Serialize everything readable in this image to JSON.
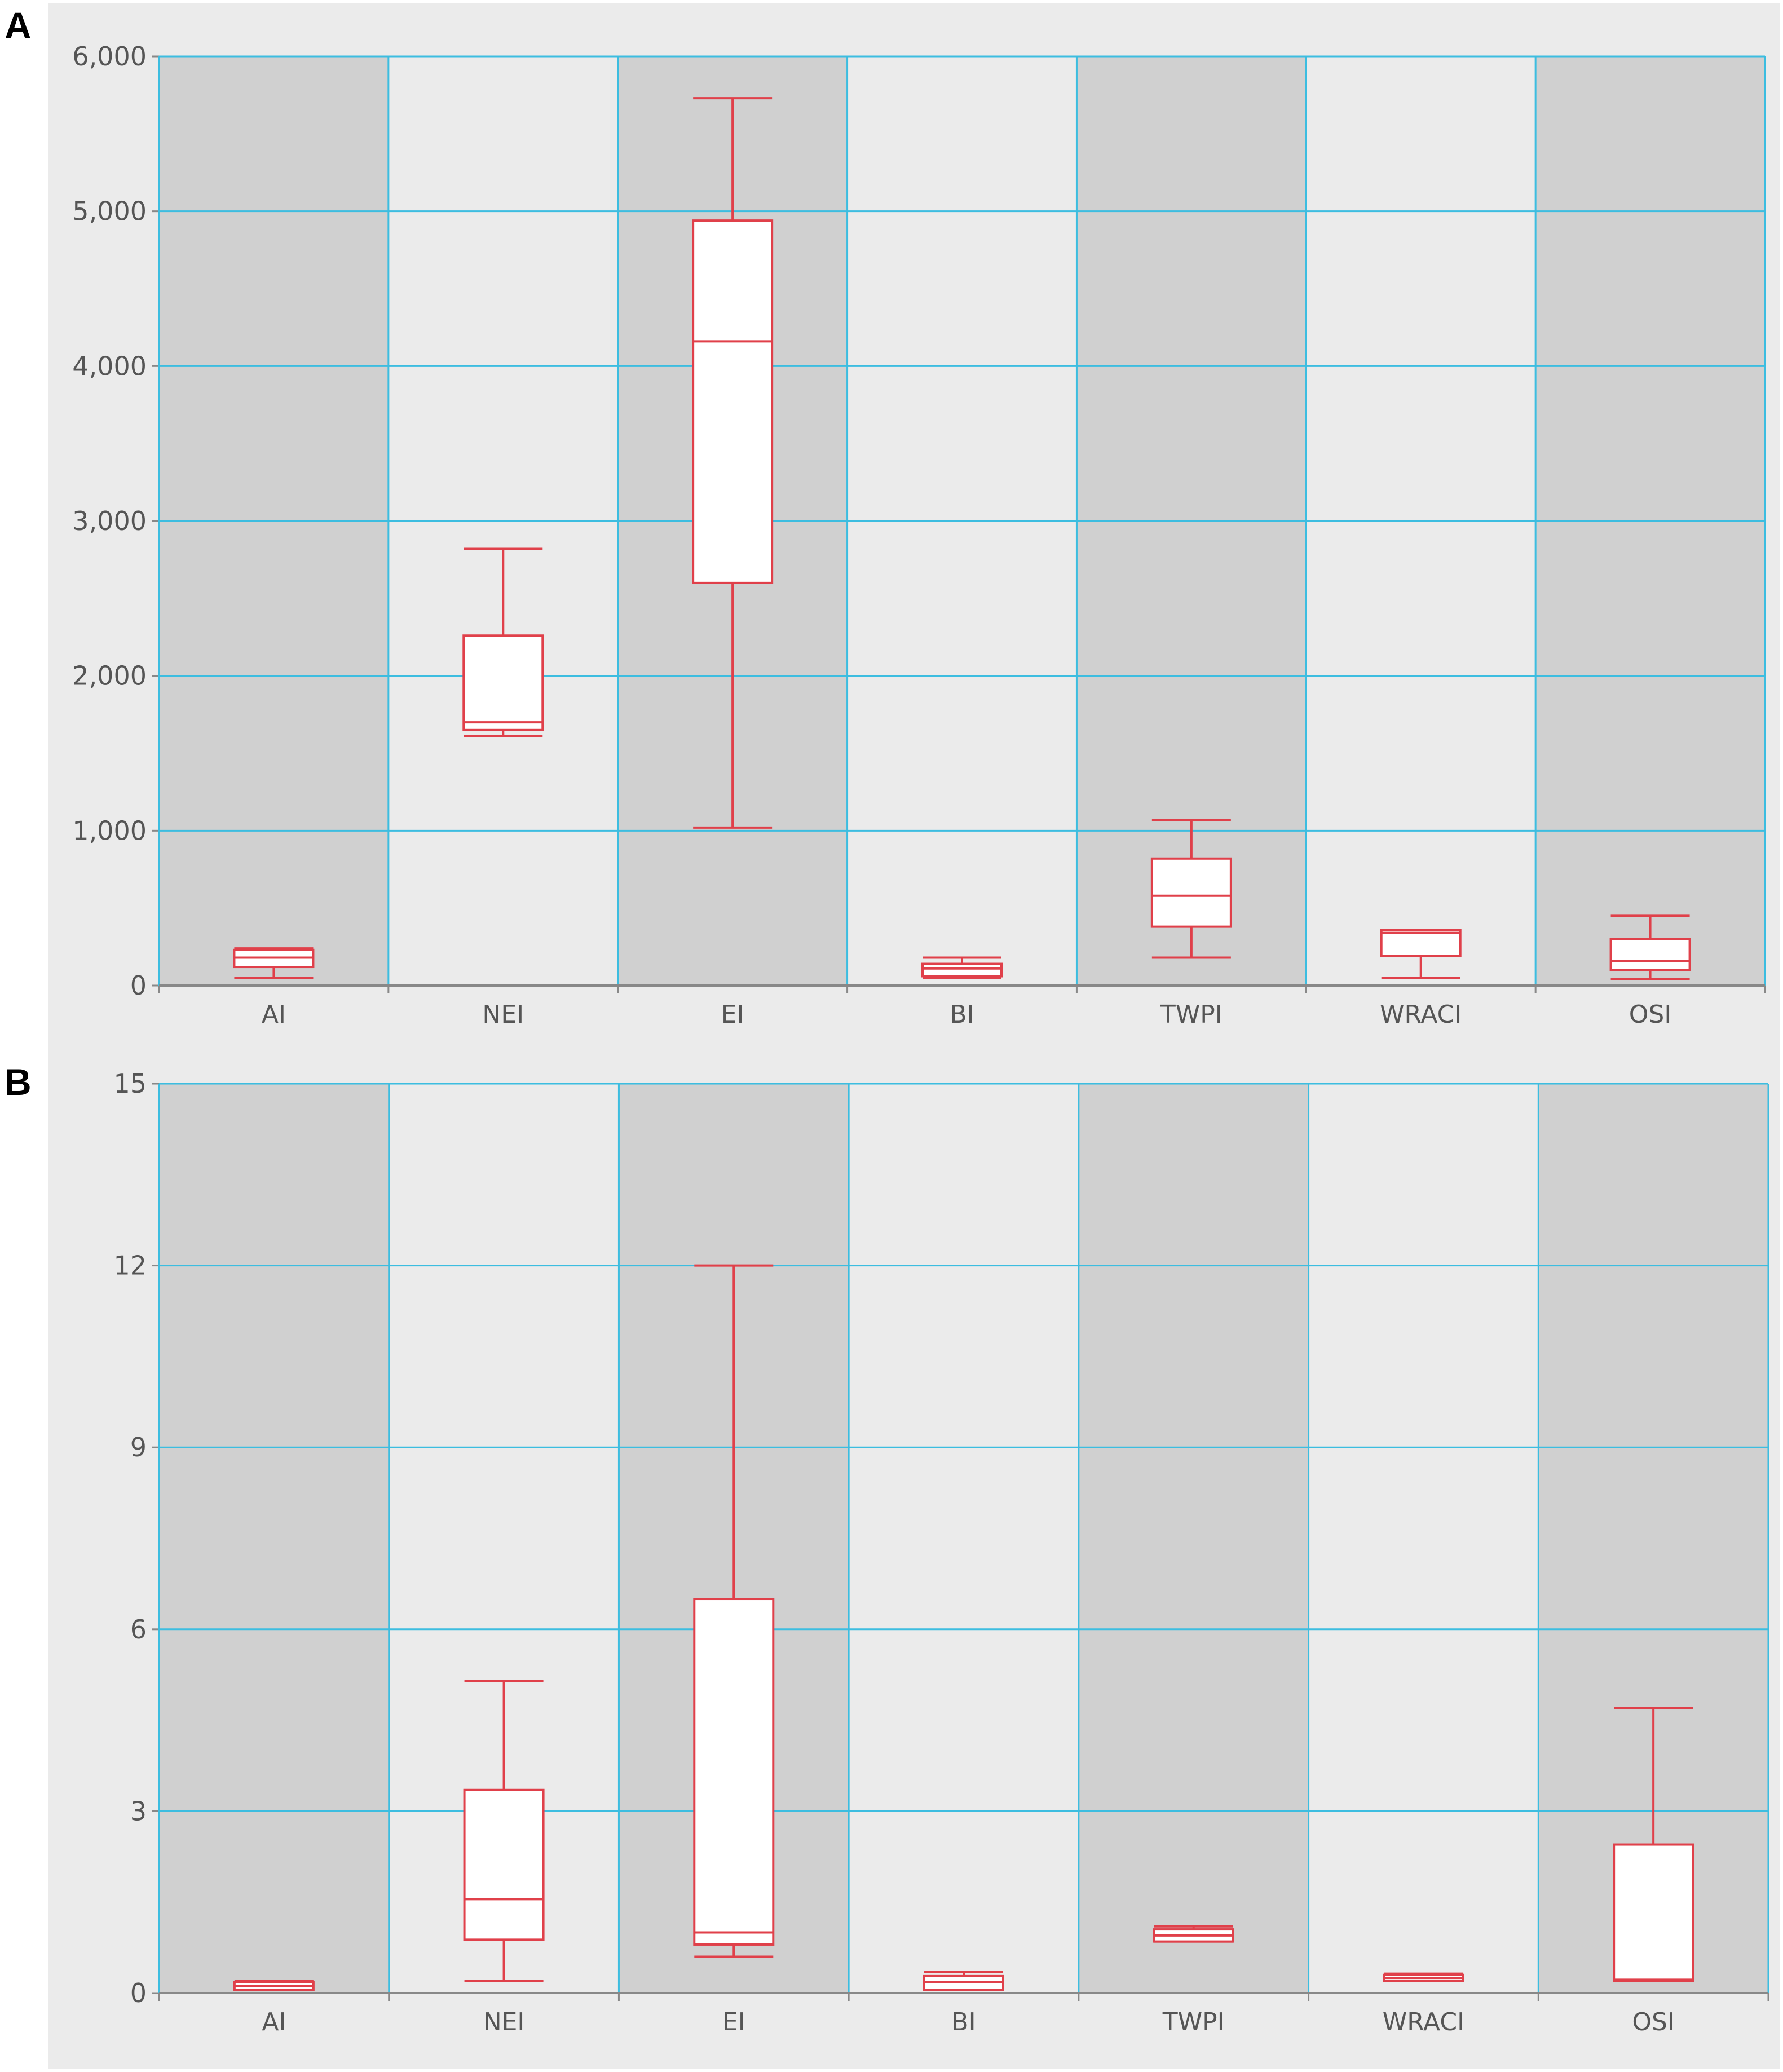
{
  "panels": [
    {
      "letter": "A"
    },
    {
      "letter": "B"
    }
  ],
  "colors": {
    "background": "#ebebeb",
    "band_dark": "#d0d0d0",
    "band_light": "#ebebeb",
    "grid": "#3cbde0",
    "box_stroke": "#e0404a",
    "box_fill": "#ffffff",
    "axis": "#888888"
  },
  "chart_data": [
    {
      "type": "box",
      "title": "",
      "xlabel": "",
      "ylabel": "",
      "categories": [
        "AI",
        "NEI",
        "EI",
        "BI",
        "TWPI",
        "WRACI",
        "OSI"
      ],
      "ylim": [
        0,
        6000
      ],
      "yticks": [
        0,
        1000,
        2000,
        3000,
        4000,
        5000,
        6000
      ],
      "ytick_labels": [
        "0",
        "1,000",
        "2,000",
        "3,000",
        "4,000",
        "5,000",
        "6,000"
      ],
      "grid": true,
      "boxes": [
        {
          "min": 50,
          "q1": 120,
          "median": 180,
          "q3": 230,
          "max": 240
        },
        {
          "min": 1610,
          "q1": 1650,
          "median": 1700,
          "q3": 2260,
          "max": 2820
        },
        {
          "min": 1020,
          "q1": 2600,
          "median": 4160,
          "q3": 4940,
          "max": 5730
        },
        {
          "min": 50,
          "q1": 60,
          "median": 110,
          "q3": 140,
          "max": 180
        },
        {
          "min": 180,
          "q1": 380,
          "median": 580,
          "q3": 820,
          "max": 1070
        },
        {
          "min": 50,
          "q1": 190,
          "median": 340,
          "q3": 360,
          "max": 360
        },
        {
          "min": 40,
          "q1": 100,
          "median": 160,
          "q3": 300,
          "max": 450
        }
      ]
    },
    {
      "type": "box",
      "title": "",
      "xlabel": "",
      "ylabel": "",
      "categories": [
        "AI",
        "NEI",
        "EI",
        "BI",
        "TWPI",
        "WRACI",
        "OSI"
      ],
      "ylim": [
        0,
        15
      ],
      "yticks": [
        0,
        3,
        6,
        9,
        12,
        15
      ],
      "ytick_labels": [
        "0",
        "3",
        "6",
        "9",
        "12",
        "15"
      ],
      "grid": true,
      "boxes": [
        {
          "min": 0.05,
          "q1": 0.05,
          "median": 0.12,
          "q3": 0.18,
          "max": 0.2
        },
        {
          "min": 0.2,
          "q1": 0.88,
          "median": 1.55,
          "q3": 3.35,
          "max": 5.15
        },
        {
          "min": 0.6,
          "q1": 0.8,
          "median": 1.0,
          "q3": 6.5,
          "max": 12.0
        },
        {
          "min": 0.05,
          "q1": 0.05,
          "median": 0.18,
          "q3": 0.28,
          "max": 0.35
        },
        {
          "min": 0.85,
          "q1": 0.85,
          "median": 0.95,
          "q3": 1.05,
          "max": 1.1
        },
        {
          "min": 0.2,
          "q1": 0.2,
          "median": 0.25,
          "q3": 0.3,
          "max": 0.32
        },
        {
          "min": 0.2,
          "q1": 0.2,
          "median": 0.22,
          "q3": 2.45,
          "max": 4.7
        }
      ]
    }
  ]
}
